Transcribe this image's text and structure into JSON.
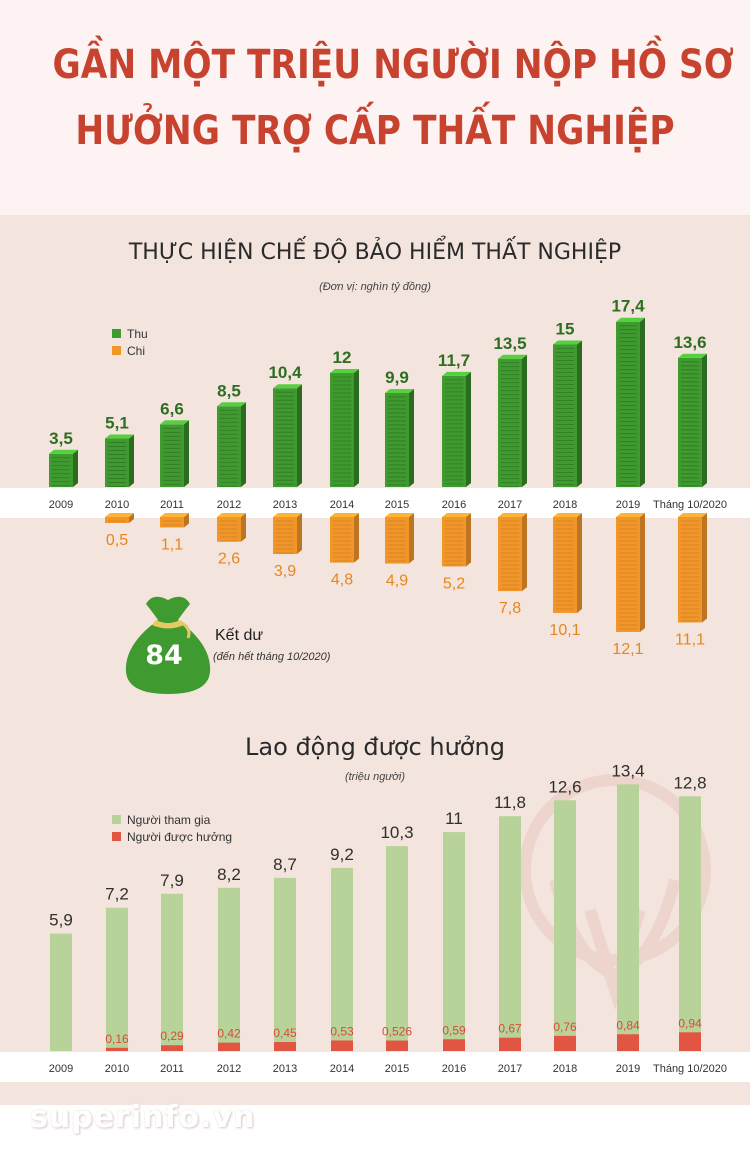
{
  "header": {
    "line1": "GẦN MỘT TRIỆU NGƯỜI NỘP HỒ SƠ",
    "line2": "HƯỞNG TRỢ CẤP THẤT NGHIỆP"
  },
  "colors": {
    "headline": "#c8432f",
    "thu": "#3f9a2f",
    "chi": "#f2962a",
    "tham_gia": "#b8d39a",
    "duoc_huong": "#e25542",
    "bag": "#3f9a2f"
  },
  "section1": {
    "title": "THỰC HIỆN CHẾ ĐỘ BẢO HIỂM THẤT NGHIỆP",
    "unit": "(Đơn vị: nghìn tỷ đồng)",
    "legend": {
      "thu": "Thu",
      "chi": "Chi"
    },
    "surplus": {
      "value": "84",
      "label": "Kết dư",
      "note": "(đến hết tháng 10/2020)"
    }
  },
  "section2": {
    "title": "Lao động được hưởng",
    "unit": "(triệu người)",
    "legend": {
      "tham_gia": "Người tham gia",
      "duoc_huong": "Người được hưởng"
    }
  },
  "footer": {
    "brand": "superinfo.vn"
  },
  "chart_data": [
    {
      "type": "bar",
      "title": "THỰC HIỆN CHẾ ĐỘ BẢO HIỂM THẤT NGHIỆP",
      "unit": "(Đơn vị: nghìn tỷ đồng)",
      "categories": [
        "2009",
        "2010",
        "2011",
        "2012",
        "2013",
        "2014",
        "2015",
        "2016",
        "2017",
        "2018",
        "2019",
        "Tháng 10/2020"
      ],
      "series": [
        {
          "name": "Thu",
          "values": [
            3.5,
            5.1,
            6.6,
            8.5,
            10.4,
            12,
            9.9,
            11.7,
            13.5,
            15,
            17.4,
            13.6
          ],
          "labels": [
            "3,5",
            "5,1",
            "6,6",
            "8,5",
            "10,4",
            "12",
            "9,9",
            "11,7",
            "13,5",
            "15",
            "17,4",
            "13,6"
          ]
        },
        {
          "name": "Chi",
          "values": [
            null,
            0.5,
            1.1,
            2.6,
            3.9,
            4.8,
            4.9,
            5.2,
            7.8,
            10.1,
            12.1,
            11.1
          ],
          "labels": [
            "",
            "0,5",
            "1,1",
            "2,6",
            "3,9",
            "4,8",
            "4,9",
            "5,2",
            "7,8",
            "10,1",
            "12,1",
            "11,1"
          ]
        }
      ],
      "legend": "top-left"
    },
    {
      "type": "bar",
      "title": "Lao động được hưởng",
      "unit": "(triệu người)",
      "categories": [
        "2009",
        "2010",
        "2011",
        "2012",
        "2013",
        "2014",
        "2015",
        "2016",
        "2017",
        "2018",
        "2019",
        "Tháng 10/2020"
      ],
      "series": [
        {
          "name": "Người tham gia",
          "values": [
            5.9,
            7.2,
            7.9,
            8.2,
            8.7,
            9.2,
            10.3,
            11,
            11.8,
            12.6,
            13.4,
            12.8
          ],
          "labels": [
            "5,9",
            "7,2",
            "7,9",
            "8,2",
            "8,7",
            "9,2",
            "10,3",
            "11",
            "11,8",
            "12,6",
            "13,4",
            "12,8"
          ]
        },
        {
          "name": "Người được hưởng",
          "values": [
            null,
            0.16,
            0.29,
            0.42,
            0.45,
            0.53,
            0.526,
            0.59,
            0.67,
            0.76,
            0.84,
            0.94
          ],
          "labels": [
            "",
            "0,16",
            "0,29",
            "0,42",
            "0,45",
            "0,53",
            "0,526",
            "0,59",
            "0,67",
            "0,76",
            "0,84",
            "0,94"
          ]
        }
      ],
      "legend": "top-left"
    }
  ]
}
